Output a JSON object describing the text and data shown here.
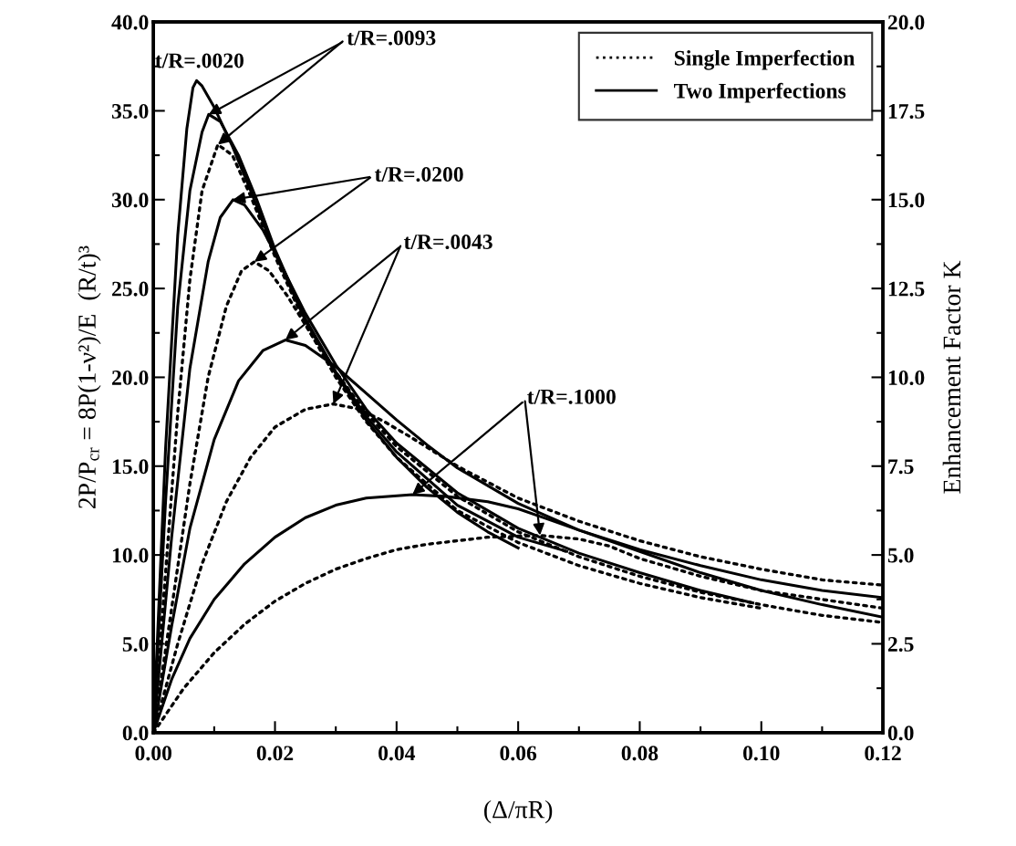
{
  "chart_data": {
    "type": "line",
    "xlabel": "(Δ/πR)",
    "ylabel": "2P/P$_{cr}$ = 8P(1-ν²)/E  (R/t)³",
    "y2label": "Enhancement Factor K",
    "xlim": [
      0,
      0.12
    ],
    "xticks": [
      {
        "value": 0,
        "label": "0.00"
      },
      {
        "value": 0.02,
        "label": "0.02"
      },
      {
        "value": 0.04,
        "label": "0.04"
      },
      {
        "value": 0.06,
        "label": "0.06"
      },
      {
        "value": 0.08,
        "label": "0.08"
      },
      {
        "value": 0.1,
        "label": "0.10"
      },
      {
        "value": 0.12,
        "label": "0.12"
      }
    ],
    "ylim": [
      0,
      40
    ],
    "yticks": [
      {
        "value": 0,
        "label": "0.0"
      },
      {
        "value": 5,
        "label": "5.0"
      },
      {
        "value": 10,
        "label": "10.0"
      },
      {
        "value": 15,
        "label": "15.0"
      },
      {
        "value": 20,
        "label": "20.0"
      },
      {
        "value": 25,
        "label": "25.0"
      },
      {
        "value": 30,
        "label": "30.0"
      },
      {
        "value": 35,
        "label": "35.0"
      },
      {
        "value": 40,
        "label": "40.0"
      }
    ],
    "y2lim": [
      0,
      20
    ],
    "y2ticks": [
      {
        "value": 0,
        "label": "0.0"
      },
      {
        "value": 2.5,
        "label": "2.5"
      },
      {
        "value": 5,
        "label": "5.0"
      },
      {
        "value": 7.5,
        "label": "7.5"
      },
      {
        "value": 10,
        "label": "10.0"
      },
      {
        "value": 12.5,
        "label": "12.5"
      },
      {
        "value": 15,
        "label": "15.0"
      },
      {
        "value": 17.5,
        "label": "17.5"
      },
      {
        "value": 20,
        "label": "20.0"
      }
    ],
    "legend": "top right",
    "grid": false,
    "marker": "none",
    "series": [
      {
        "name": "Two Imperfections",
        "color": "#000000",
        "line_style": "solid",
        "x": [
          0,
          0.002,
          0.004,
          0.0055,
          0.0065,
          0.0071,
          0.008,
          0.01,
          0.013,
          0.016,
          0.02,
          0.025,
          0.03,
          0.035,
          0.04,
          0.045,
          0.05,
          0.055,
          0.06
        ],
        "values": [
          0,
          16,
          28,
          34,
          36.3,
          36.7,
          36.4,
          35.2,
          33,
          30.5,
          27,
          23.2,
          20.2,
          17.6,
          15.5,
          13.8,
          12.4,
          11.3,
          10.4
        ]
      },
      {
        "color": "#000000",
        "line_style": "solid",
        "x": [
          0,
          0.002,
          0.004,
          0.006,
          0.008,
          0.0091,
          0.011,
          0.014,
          0.017,
          0.02,
          0.025,
          0.03,
          0.035,
          0.04,
          0.05,
          0.06,
          0.068
        ],
        "values": [
          0,
          13,
          24,
          30.5,
          33.8,
          34.8,
          34.4,
          32.5,
          30,
          27.2,
          23.3,
          20.3,
          17.8,
          15.8,
          12.8,
          11,
          10.2
        ]
      },
      {
        "color": "#000000",
        "line_style": "solid",
        "x": [
          0,
          0.003,
          0.006,
          0.009,
          0.011,
          0.0131,
          0.015,
          0.018,
          0.02,
          0.025,
          0.03,
          0.035,
          0.04,
          0.05,
          0.06,
          0.07,
          0.08,
          0.09,
          0.0986
        ],
        "values": [
          0,
          11,
          20.5,
          26.5,
          29,
          30,
          29.7,
          28.3,
          27,
          23.6,
          20.7,
          18.2,
          16.3,
          13.5,
          11.5,
          10.1,
          9,
          8,
          7.3
        ]
      },
      {
        "color": "#000000",
        "line_style": "solid",
        "x": [
          0,
          0.003,
          0.006,
          0.01,
          0.014,
          0.018,
          0.0217,
          0.025,
          0.03,
          0.035,
          0.04,
          0.045,
          0.05,
          0.06,
          0.07,
          0.08,
          0.09,
          0.1,
          0.11,
          0.12
        ],
        "values": [
          0,
          6,
          11.5,
          16.5,
          19.8,
          21.5,
          22.1,
          21.8,
          20.6,
          19.1,
          17.6,
          16.2,
          14.9,
          12.9,
          11.4,
          10.3,
          9.4,
          8.6,
          8,
          7.6
        ]
      },
      {
        "color": "#000000",
        "line_style": "solid",
        "x": [
          0,
          0.003,
          0.006,
          0.01,
          0.015,
          0.02,
          0.025,
          0.03,
          0.035,
          0.0426,
          0.048,
          0.055,
          0.06,
          0.065,
          0.07,
          0.08,
          0.09,
          0.1,
          0.11,
          0.12
        ],
        "values": [
          0,
          3,
          5.3,
          7.5,
          9.5,
          11,
          12.1,
          12.8,
          13.2,
          13.4,
          13.3,
          13,
          12.6,
          12,
          11.4,
          10.2,
          9,
          8,
          7.2,
          6.5
        ]
      },
      {
        "name": "Single Imperfection",
        "color": "#000000",
        "line_style": "dotted",
        "x": [
          0,
          0.002,
          0.004,
          0.006,
          0.008,
          0.0106,
          0.013,
          0.016,
          0.02,
          0.025,
          0.03,
          0.035,
          0.04,
          0.05,
          0.06,
          0.07,
          0.08,
          0.09,
          0.1
        ],
        "values": [
          0,
          9,
          18,
          25.5,
          30.5,
          33.1,
          32.5,
          30.2,
          26.8,
          23,
          20,
          17.5,
          15.5,
          12.5,
          10.7,
          9.4,
          8.4,
          7.6,
          7
        ]
      },
      {
        "color": "#000000",
        "line_style": "dotted",
        "x": [
          0,
          0.003,
          0.006,
          0.009,
          0.012,
          0.0145,
          0.0166,
          0.019,
          0.022,
          0.026,
          0.03,
          0.035,
          0.04,
          0.05,
          0.06,
          0.07,
          0.08,
          0.09,
          0.1,
          0.11,
          0.12
        ],
        "values": [
          0,
          7,
          14,
          20,
          24,
          26,
          26.5,
          26,
          24.6,
          22.4,
          20.3,
          18,
          16.1,
          13.3,
          11.3,
          9.9,
          8.8,
          7.9,
          7.2,
          6.6,
          6.2
        ]
      },
      {
        "color": "#000000",
        "line_style": "dotted",
        "x": [
          0,
          0.004,
          0.008,
          0.012,
          0.016,
          0.02,
          0.025,
          0.0296,
          0.034,
          0.038,
          0.042,
          0.05,
          0.06,
          0.07,
          0.08,
          0.09,
          0.1,
          0.11,
          0.12
        ],
        "values": [
          0,
          5,
          9.5,
          13,
          15.5,
          17.2,
          18.2,
          18.5,
          18.2,
          17.5,
          16.7,
          15,
          13.2,
          11.9,
          10.8,
          9.9,
          9.2,
          8.6,
          8.3
        ]
      },
      {
        "color": "#000000",
        "line_style": "dotted",
        "x": [
          0,
          0.005,
          0.01,
          0.015,
          0.02,
          0.025,
          0.03,
          0.035,
          0.04,
          0.045,
          0.05,
          0.055,
          0.0636,
          0.07,
          0.075,
          0.08,
          0.09,
          0.1,
          0.11,
          0.12
        ],
        "values": [
          0,
          2.5,
          4.5,
          6.1,
          7.4,
          8.4,
          9.2,
          9.8,
          10.3,
          10.6,
          10.8,
          11,
          11.1,
          10.9,
          10.5,
          9.8,
          8.8,
          8,
          7.5,
          7
        ]
      }
    ],
    "annotations": [
      {
        "text": "t/R=.0020",
        "x": 0.0071,
        "y": 36.7
      },
      {
        "text": "t/R=.0093",
        "x": 0.0091,
        "y": 34.8
      },
      {
        "text": "t/R=.0200",
        "x": 0.0131,
        "y": 30.0
      },
      {
        "text": "t/R=.0043",
        "x": 0.0217,
        "y": 22.1
      },
      {
        "text": "t/R=.1000",
        "x": 0.0426,
        "y": 13.4
      }
    ]
  }
}
